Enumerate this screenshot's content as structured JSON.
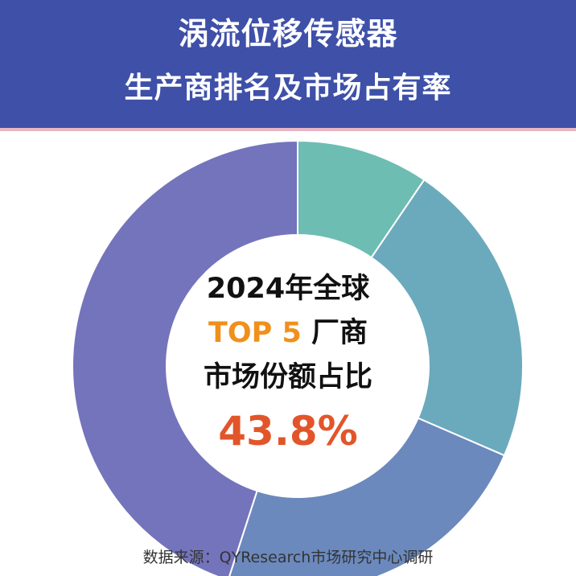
{
  "header": {
    "title_line1": "涡流位移传感器",
    "title_line2": "生产商排名及市场占有率"
  },
  "center": {
    "line1": "2024年全球",
    "line2_highlight": "TOP 5",
    "line2_rest": " 厂商",
    "line3": "市场份额占比",
    "value": "43.8%"
  },
  "source": "数据来源：QYResearch市场研究中心调研",
  "colors": {
    "header_bg": "#3e50a8",
    "highlight_orange": "#f0901b",
    "value_red": "#e2552a"
  },
  "chart_data": {
    "type": "pie",
    "title": "",
    "slices": [
      {
        "value": 9.5,
        "color": "#6dbdb2"
      },
      {
        "value": 22.0,
        "color": "#6baabc"
      },
      {
        "value": 23.5,
        "color": "#6b89bd"
      },
      {
        "value": 45.0,
        "color": "#7474bc"
      }
    ]
  }
}
